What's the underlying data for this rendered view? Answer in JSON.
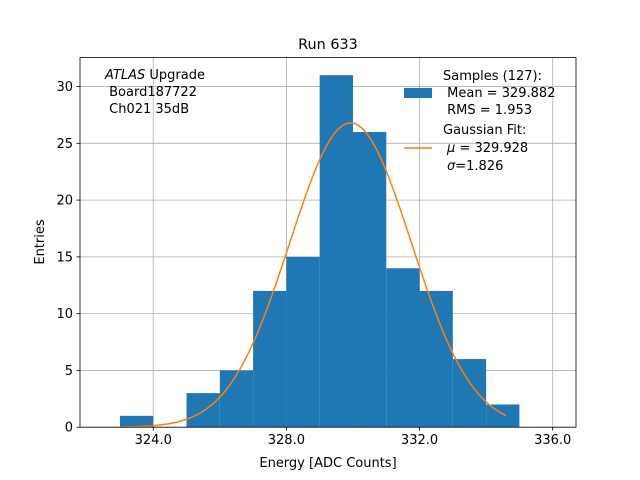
{
  "chart_data": {
    "type": "bar",
    "title": "Run 633",
    "xlabel": "Energy [ADC Counts]",
    "ylabel": "Entries",
    "xlim": [
      321.8,
      336.7
    ],
    "ylim": [
      0,
      32.55
    ],
    "grid": true,
    "x_ticks": [
      324,
      328,
      332,
      336
    ],
    "x_tick_labels": [
      "324.0",
      "328.0",
      "332.0",
      "336.0"
    ],
    "y_ticks": [
      0,
      5,
      10,
      15,
      20,
      25,
      30
    ],
    "y_tick_labels": [
      "0",
      "5",
      "10",
      "15",
      "20",
      "25",
      "30"
    ],
    "histogram": {
      "bin_edges": [
        323,
        324,
        325,
        326,
        327,
        328,
        329,
        330,
        331,
        332,
        333,
        334,
        335
      ],
      "counts": [
        1,
        0,
        3,
        5,
        12,
        15,
        31,
        26,
        14,
        12,
        6,
        2
      ],
      "color": "#1f77b4"
    },
    "gaussian_fit": {
      "mu": 329.928,
      "sigma": 1.826,
      "amplitude": 26.8,
      "x_range": [
        323.0,
        334.6
      ],
      "color": "#ff7f0e"
    },
    "annotation": {
      "italic": "ATLAS",
      "line1_rest": " Upgrade",
      "line2": " Board187722",
      "line3": " Ch021 35dB"
    },
    "legend": {
      "position": "top-right",
      "samples_title": "Samples (127):",
      "samples_mean": " Mean = 329.882",
      "samples_rms": " RMS = 1.953",
      "fit_title": "Gaussian Fit:",
      "fit_mu_symbol": "μ",
      "fit_mu_value": " = 329.928",
      "fit_sigma_symbol": "σ",
      "fit_sigma_value": "=1.826"
    }
  }
}
